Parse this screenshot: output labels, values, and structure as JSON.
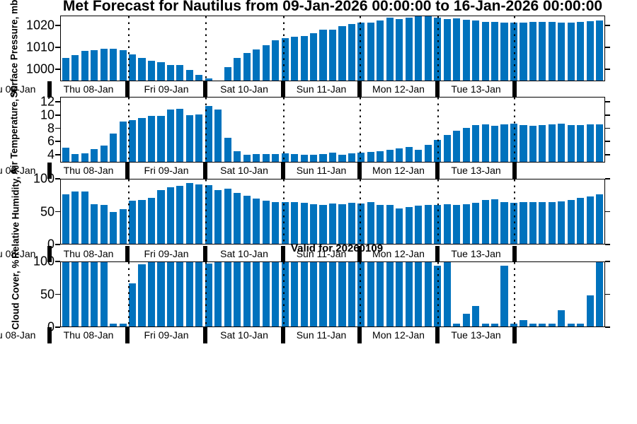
{
  "title": "Met Forecast for Nautilus from 09-Jan-2026 00:00:00 to 16-Jan-2026 00:00:00",
  "annotation": "Valid for 20260109",
  "colors": {
    "bar": "#0072bd",
    "axis": "#000000"
  },
  "x_axis": {
    "day_labels": [
      "Thu 08-Jan",
      "Fri 09-Jan",
      "Sat 10-Jan",
      "Sun 11-Jan",
      "Mon 12-Jan",
      "Tue 13-Jan",
      ""
    ],
    "cut_edge_label": "Thu 08-Jan",
    "bars_per_day": [
      7,
      8,
      8,
      8,
      8,
      8,
      10
    ]
  },
  "chart_data": [
    {
      "type": "bar",
      "name": "surface-pressure",
      "ylabel": "Surface Pressure, mb",
      "yticks": [
        1000,
        1010,
        1020
      ],
      "ylim": [
        994.5,
        1024.5
      ],
      "values": [
        1005.0,
        1006.5,
        1008.3,
        1008.8,
        1009.2,
        1009.2,
        1008.8,
        1006.8,
        1005.2,
        1003.6,
        1003.2,
        1001.6,
        1001.9,
        999.6,
        997.3,
        995.4,
        994.6,
        1000.8,
        1005.0,
        1007.3,
        1009.0,
        1011.0,
        1013.3,
        1014.3,
        1015.1,
        1015.2,
        1016.7,
        1018.1,
        1018.1,
        1019.9,
        1021.0,
        1021.5,
        1021.5,
        1022.4,
        1023.7,
        1023.1,
        1023.7,
        1024.5,
        1024.5,
        1023.8,
        1023.2,
        1023.4,
        1023.0,
        1022.4,
        1021.8,
        1021.8,
        1021.4,
        1021.6,
        1021.4,
        1021.8,
        1021.8,
        1021.8,
        1021.4,
        1021.4,
        1021.9,
        1022.3,
        1022.6
      ]
    },
    {
      "type": "bar",
      "name": "air-temperature",
      "ylabel": "Air Temperature, °C",
      "yticks": [
        4,
        6,
        8,
        10,
        12
      ],
      "ylim": [
        2.8,
        12.8
      ],
      "values": [
        5.0,
        4.0,
        4.1,
        4.8,
        5.3,
        7.2,
        9.1,
        9.25,
        9.6,
        9.9,
        9.95,
        10.9,
        11.0,
        10.1,
        10.15,
        11.5,
        10.9,
        6.5,
        4.5,
        3.9,
        4.0,
        4.0,
        4.0,
        4.1,
        4.0,
        3.9,
        3.9,
        4.0,
        4.2,
        3.9,
        4.15,
        4.2,
        4.3,
        4.5,
        4.7,
        4.9,
        5.15,
        4.65,
        5.45,
        6.2,
        7.0,
        7.6,
        8.1,
        8.5,
        8.6,
        8.45,
        8.65,
        8.7,
        8.5,
        8.45,
        8.5,
        8.6,
        8.75,
        8.5,
        8.55,
        8.6,
        8.6
      ]
    },
    {
      "type": "bar",
      "name": "relative-humidity",
      "ylabel": "Relative Humidity, %",
      "yticks": [
        0,
        50,
        100
      ],
      "ylim": [
        0,
        100
      ],
      "values": [
        77,
        81,
        81,
        62,
        61,
        49,
        54,
        67,
        68,
        71,
        84,
        88,
        90,
        94,
        92,
        91,
        83,
        86,
        79,
        75,
        70,
        67,
        65,
        65,
        65,
        64,
        62,
        61,
        63,
        62,
        64,
        63,
        65,
        61,
        60,
        55,
        57,
        59,
        60,
        61,
        62,
        61,
        62,
        64,
        68,
        69,
        65,
        64,
        65,
        65,
        65,
        65,
        66,
        68,
        71,
        74,
        77
      ]
    },
    {
      "type": "bar",
      "name": "cloud-cover",
      "ylabel": "Cloud Cover, %",
      "yticks": [
        0,
        50,
        100
      ],
      "ylim": [
        0,
        100
      ],
      "values": [
        100,
        100,
        100,
        100,
        100,
        4,
        4,
        67,
        97,
        100,
        100,
        100,
        100,
        100,
        100,
        98,
        100,
        100,
        100,
        100,
        100,
        100,
        100,
        100,
        100,
        100,
        100,
        100,
        100,
        100,
        100,
        100,
        100,
        100,
        100,
        100,
        100,
        100,
        100,
        94,
        100,
        4,
        20,
        32,
        4,
        4,
        94,
        4,
        10,
        4,
        4,
        4,
        25,
        4,
        4,
        48,
        100
      ]
    }
  ]
}
